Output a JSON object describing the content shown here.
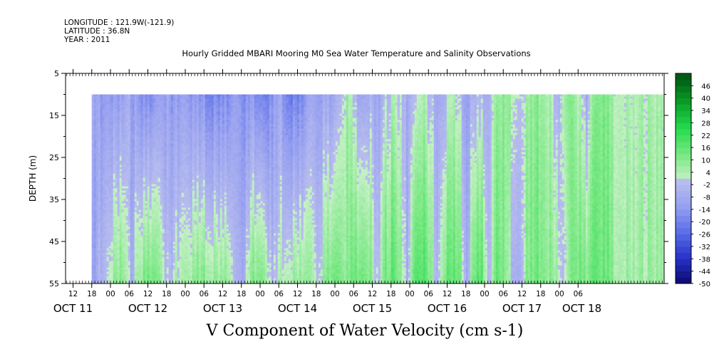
{
  "meta": {
    "longitude": "LONGITUDE : 121.9W(-121.9)",
    "latitude": "LATITUDE : 36.8N",
    "year": "YEAR : 2011"
  },
  "chart_data": {
    "type": "heatmap",
    "title": "Hourly Gridded MBARI Mooring M0 Sea Water Temperature and Salinity Observations",
    "xlabel": "V Component of Water Velocity (cm s-1)",
    "ylabel": "DEPTH (m)",
    "ylim": [
      55,
      5
    ],
    "y_ticks": [
      5,
      15,
      25,
      35,
      45,
      55
    ],
    "data_depth_range": [
      10,
      55
    ],
    "x_hour_ticks": [
      "12",
      "18",
      "00",
      "06",
      "12",
      "18",
      "00",
      "06",
      "12",
      "18",
      "00",
      "06",
      "12",
      "18",
      "00",
      "06",
      "12",
      "18",
      "00",
      "06",
      "12",
      "18",
      "00",
      "06",
      "12",
      "18",
      "00",
      "06"
    ],
    "x_day_labels": [
      "OCT 11",
      "OCT 12",
      "OCT 13",
      "OCT 14",
      "OCT 15",
      "OCT 16",
      "OCT 17",
      "OCT 18"
    ],
    "x_day_label_positions": [
      10.5,
      11.5,
      12.5,
      13.5,
      14.5,
      15.5,
      16.5,
      17.3
    ],
    "x_range": [
      10.4,
      18.4
    ],
    "data_start": 10.75,
    "colorbar": {
      "ticks": [
        46,
        40,
        34,
        28,
        22,
        16,
        10,
        4,
        -2,
        -8,
        -14,
        -20,
        -26,
        -32,
        -38,
        -44,
        -50
      ],
      "range": [
        -50,
        52
      ]
    },
    "column_profiles": [
      {
        "x": 10.75,
        "top": -6,
        "bottom": -12
      },
      {
        "x": 10.85,
        "top": -12,
        "bottom": -3
      },
      {
        "x": 10.95,
        "top": -10,
        "bottom": 2
      },
      {
        "x": 11.05,
        "top": -14,
        "bottom": 8
      },
      {
        "x": 11.15,
        "top": -10,
        "bottom": 12
      },
      {
        "x": 11.25,
        "top": -8,
        "bottom": -6
      },
      {
        "x": 11.35,
        "top": -16,
        "bottom": 4
      },
      {
        "x": 11.45,
        "top": -18,
        "bottom": 12
      },
      {
        "x": 11.55,
        "top": -16,
        "bottom": 14
      },
      {
        "x": 11.65,
        "top": -14,
        "bottom": 8
      },
      {
        "x": 11.75,
        "top": -12,
        "bottom": -4
      },
      {
        "x": 11.85,
        "top": -14,
        "bottom": 2
      },
      {
        "x": 11.95,
        "top": -10,
        "bottom": 6
      },
      {
        "x": 12.05,
        "top": -12,
        "bottom": 8
      },
      {
        "x": 12.15,
        "top": -14,
        "bottom": 10
      },
      {
        "x": 12.25,
        "top": -16,
        "bottom": 10
      },
      {
        "x": 12.35,
        "top": -18,
        "bottom": 8
      },
      {
        "x": 12.45,
        "top": -20,
        "bottom": 6
      },
      {
        "x": 12.55,
        "top": -18,
        "bottom": 8
      },
      {
        "x": 12.65,
        "top": -14,
        "bottom": -6
      },
      {
        "x": 12.75,
        "top": -16,
        "bottom": -8
      },
      {
        "x": 12.85,
        "top": -14,
        "bottom": 8
      },
      {
        "x": 12.95,
        "top": -18,
        "bottom": 12
      },
      {
        "x": 13.05,
        "top": -20,
        "bottom": 10
      },
      {
        "x": 13.15,
        "top": -16,
        "bottom": -4
      },
      {
        "x": 13.25,
        "top": -10,
        "bottom": 2
      },
      {
        "x": 13.35,
        "top": -18,
        "bottom": 6
      },
      {
        "x": 13.45,
        "top": -20,
        "bottom": 8
      },
      {
        "x": 13.55,
        "top": -16,
        "bottom": 10
      },
      {
        "x": 13.65,
        "top": -12,
        "bottom": 6
      },
      {
        "x": 13.75,
        "top": -14,
        "bottom": -4
      },
      {
        "x": 13.85,
        "top": -8,
        "bottom": 10
      },
      {
        "x": 13.95,
        "top": -10,
        "bottom": 14
      },
      {
        "x": 14.05,
        "top": -6,
        "bottom": 12
      },
      {
        "x": 14.15,
        "top": 6,
        "bottom": 8
      },
      {
        "x": 14.25,
        "top": -4,
        "bottom": 14
      },
      {
        "x": 14.35,
        "top": -8,
        "bottom": 16
      },
      {
        "x": 14.45,
        "top": -6,
        "bottom": 12
      },
      {
        "x": 14.55,
        "top": -10,
        "bottom": -2
      },
      {
        "x": 14.65,
        "top": -4,
        "bottom": 12
      },
      {
        "x": 14.75,
        "top": 2,
        "bottom": 16
      },
      {
        "x": 14.85,
        "top": -2,
        "bottom": 10
      },
      {
        "x": 14.95,
        "top": -8,
        "bottom": -6
      },
      {
        "x": 15.05,
        "top": -4,
        "bottom": 16
      },
      {
        "x": 15.15,
        "top": 4,
        "bottom": 18
      },
      {
        "x": 15.25,
        "top": -2,
        "bottom": 14
      },
      {
        "x": 15.35,
        "top": -8,
        "bottom": -4
      },
      {
        "x": 15.45,
        "top": -6,
        "bottom": 12
      },
      {
        "x": 15.55,
        "top": 4,
        "bottom": 16
      },
      {
        "x": 15.65,
        "top": -2,
        "bottom": 14
      },
      {
        "x": 15.75,
        "top": -10,
        "bottom": -6
      },
      {
        "x": 15.85,
        "top": -6,
        "bottom": 14
      },
      {
        "x": 15.95,
        "top": -4,
        "bottom": 16
      },
      {
        "x": 16.05,
        "top": -10,
        "bottom": -8
      },
      {
        "x": 16.15,
        "top": 8,
        "bottom": 16
      },
      {
        "x": 16.25,
        "top": 10,
        "bottom": 12
      },
      {
        "x": 16.35,
        "top": 4,
        "bottom": -4
      },
      {
        "x": 16.45,
        "top": -2,
        "bottom": -8
      },
      {
        "x": 16.55,
        "top": 6,
        "bottom": 10
      },
      {
        "x": 16.65,
        "top": 8,
        "bottom": 12
      },
      {
        "x": 16.75,
        "top": 10,
        "bottom": 14
      },
      {
        "x": 16.85,
        "top": 6,
        "bottom": 10
      },
      {
        "x": 16.95,
        "top": -4,
        "bottom": 8
      },
      {
        "x": 17.05,
        "top": 4,
        "bottom": -6
      },
      {
        "x": 17.15,
        "top": 8,
        "bottom": 10
      },
      {
        "x": 17.25,
        "top": 4,
        "bottom": 14
      },
      {
        "x": 17.35,
        "top": -6,
        "bottom": 12
      },
      {
        "x": 17.45,
        "top": 10,
        "bottom": 16
      },
      {
        "x": 17.55,
        "top": 12,
        "bottom": 14
      },
      {
        "x": 17.65,
        "top": 8,
        "bottom": 12
      },
      {
        "x": 17.75,
        "top": 4,
        "bottom": 6
      }
    ]
  }
}
